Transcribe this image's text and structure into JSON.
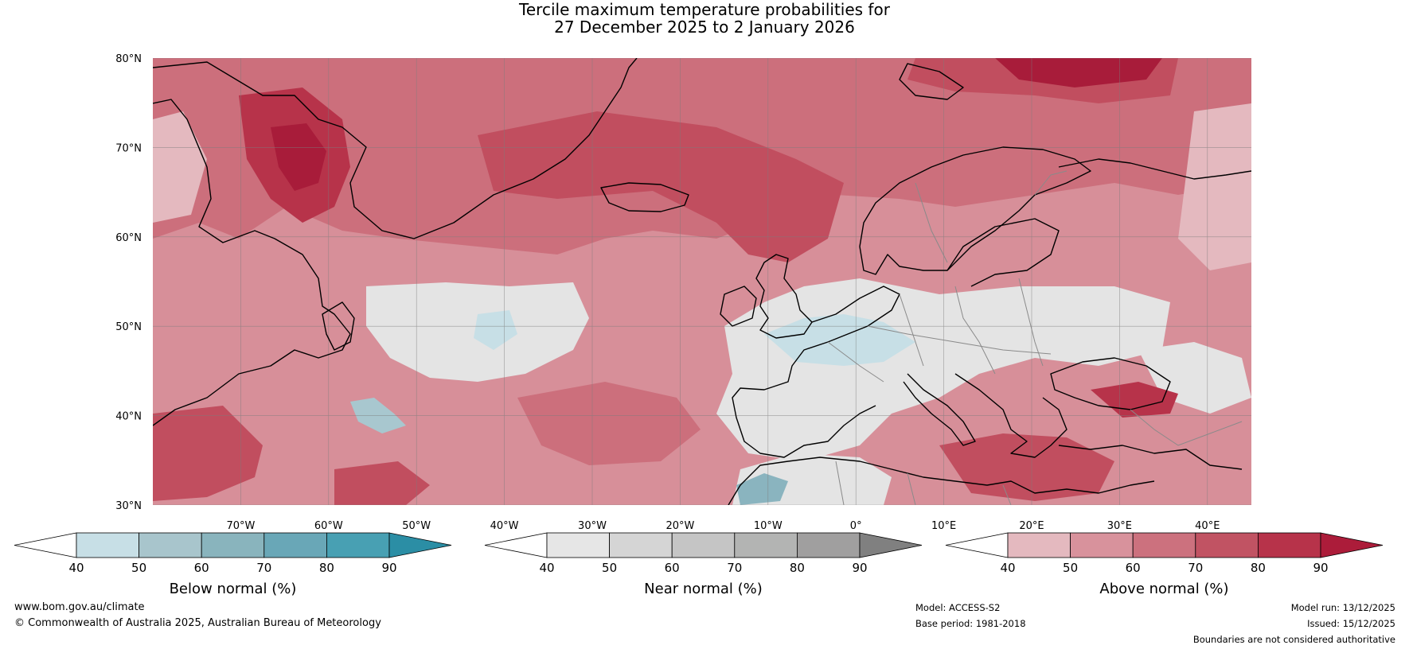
{
  "title": {
    "line1": "Tercile maximum temperature probabilities for",
    "line2": "27 December 2025 to 2 January 2026"
  },
  "map": {
    "lat_labels": [
      "80°N",
      "70°N",
      "60°N",
      "50°N",
      "40°N",
      "30°N"
    ],
    "lon_labels": [
      "70°W",
      "60°W",
      "50°W",
      "40°W",
      "30°W",
      "20°W",
      "10°W",
      "0°",
      "10°E",
      "20°E",
      "30°E",
      "40°E"
    ],
    "lon_range": [
      -80,
      45
    ],
    "lat_range": [
      30,
      80
    ],
    "colors": {
      "above_40": "#e4b9bf",
      "above_50": "#d78f99",
      "above_60": "#cc6f7c",
      "above_70": "#c14e5f",
      "above_80": "#b7334a",
      "above_90": "#a81c3a",
      "near_40": "#e4e4e4",
      "near_50": "#d3d3d3",
      "below_40": "#c7dfe6",
      "below_50": "#a8c7cf",
      "below_60": "#8ab4bf",
      "land_outline": "#000000",
      "border": "#8a8a8a"
    }
  },
  "colorbars": [
    {
      "id": "below",
      "title": "Below normal (%)",
      "ticks": [
        "40",
        "50",
        "60",
        "70",
        "80",
        "90"
      ],
      "colors": [
        "#ffffff",
        "#c7dfe6",
        "#a8c5cc",
        "#89b4bd",
        "#69a7b7",
        "#48a0b3",
        "#2b8ea5"
      ]
    },
    {
      "id": "near",
      "title": "Near normal (%)",
      "ticks": [
        "40",
        "50",
        "60",
        "70",
        "80",
        "90"
      ],
      "colors": [
        "#ffffff",
        "#e6e6e6",
        "#d5d5d5",
        "#c5c5c5",
        "#b3b4b3",
        "#a09f9f",
        "#808080"
      ]
    },
    {
      "id": "above",
      "title": "Above normal (%)",
      "ticks": [
        "40",
        "50",
        "60",
        "70",
        "80",
        "90"
      ],
      "colors": [
        "#ffffff",
        "#e4b9bf",
        "#d8929c",
        "#cc717e",
        "#c15363",
        "#b7334a",
        "#ac1c3a"
      ]
    }
  ],
  "footer": {
    "website": "www.bom.gov.au/climate",
    "copyright": "© Commonwealth of Australia 2025, Australian Bureau of Meteorology",
    "model": "Model: ACCESS-S2",
    "base_period": "Base period: 1981-2018",
    "model_run": "Model run: 13/12/2025",
    "issued": "Issued: 15/12/2025",
    "disclaimer": "Boundaries are not considered authoritative"
  }
}
